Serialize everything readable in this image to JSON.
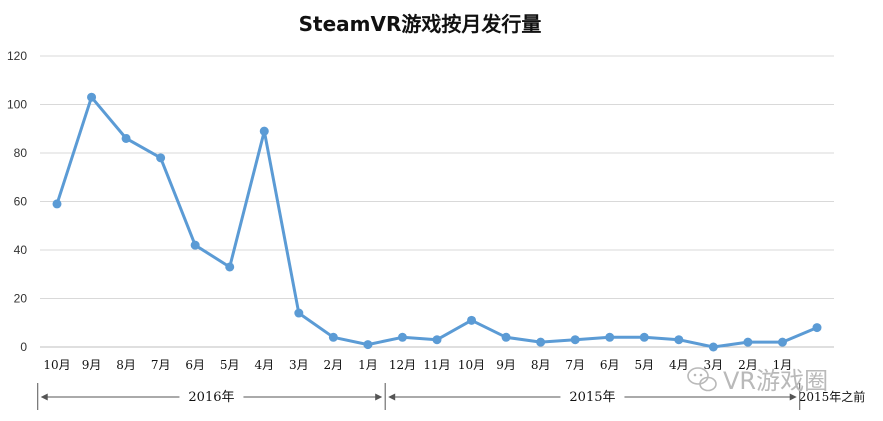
{
  "chart_data": {
    "type": "line",
    "title": "SteamVR游戏按月发行量",
    "xlabel": "",
    "ylabel": "",
    "ylim": [
      0,
      120
    ],
    "yticks": [
      0,
      20,
      40,
      60,
      80,
      100,
      120
    ],
    "grid": true,
    "legend": "none",
    "categories": [
      "10月",
      "9月",
      "8月",
      "7月",
      "6月",
      "5月",
      "4月",
      "3月",
      "2月",
      "1月",
      "12月",
      "11月",
      "10月",
      "9月",
      "8月",
      "7月",
      "6月",
      "5月",
      "4月",
      "3月",
      "2月",
      "1月",
      "2015年之前"
    ],
    "series": [
      {
        "name": "",
        "values": [
          59,
          103,
          86,
          78,
          42,
          33,
          89,
          14,
          4,
          1,
          4,
          3,
          11,
          4,
          2,
          3,
          4,
          4,
          3,
          0,
          2,
          2,
          8
        ]
      }
    ],
    "groups": [
      {
        "label": "2016年",
        "start": 0,
        "end": 9
      },
      {
        "label": "2015年",
        "start": 10,
        "end": 21
      }
    ],
    "colors": {
      "line": "#5b9bd5",
      "grid": "#d9d9d9",
      "axis": "#bfbfbf"
    }
  },
  "watermark": {
    "text": "VR游戏圈",
    "icon": "wechat-icon"
  }
}
